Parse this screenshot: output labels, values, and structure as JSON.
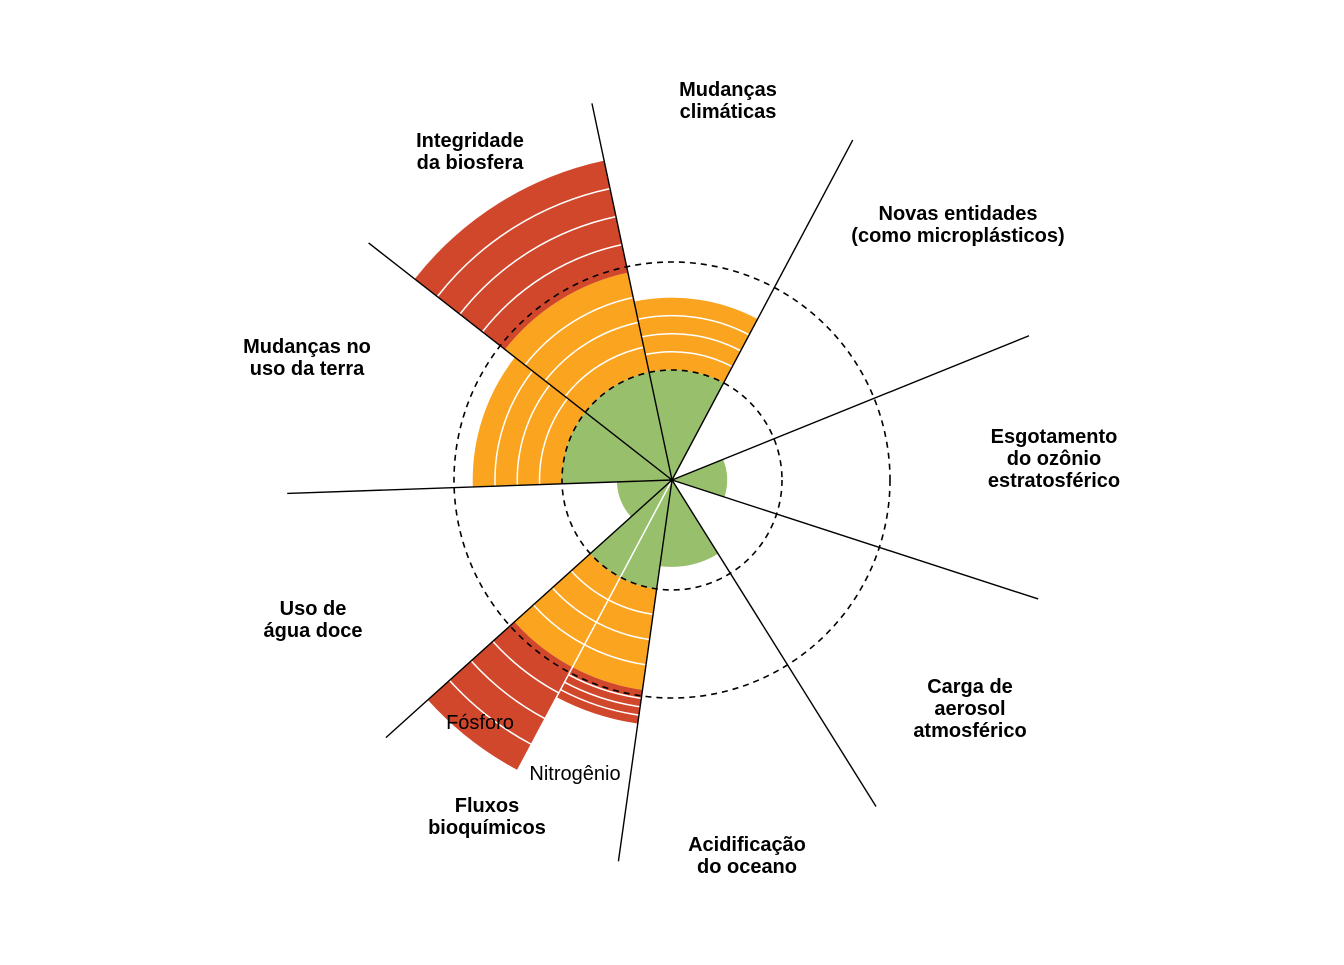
{
  "chart_data": {
    "type": "polar-bar",
    "title": "",
    "zones": {
      "safe": "#98BF6B",
      "increasing_risk": "#FBA41F",
      "high_risk": "#D0472C"
    },
    "boundary_rings": [
      "inner",
      "outer"
    ],
    "line_color": "#000000",
    "band_line_color": "#ffffff",
    "categories": [
      {
        "id": "climate",
        "label_lines": [
          "Mudanças",
          "climáticas"
        ],
        "segments": [
          {
            "zone": "safe",
            "value": 0.52
          },
          {
            "zone": "increasing_risk",
            "value": 0.34
          }
        ]
      },
      {
        "id": "novel",
        "label_lines": [
          "Novas entidades",
          "(como microplásticos)"
        ],
        "segments": []
      },
      {
        "id": "ozone",
        "label_lines": [
          "Esgotamento",
          "do ozônio",
          "estratosférico"
        ],
        "segments": [
          {
            "zone": "safe",
            "value": 0.26
          }
        ]
      },
      {
        "id": "aerosol",
        "label_lines": [
          "Carga de",
          "aerosol",
          "atmosférico"
        ],
        "segments": []
      },
      {
        "id": "ocean",
        "label_lines": [
          "Acidificação",
          "do oceano"
        ],
        "segments": [
          {
            "zone": "safe",
            "value": 0.41
          }
        ]
      },
      {
        "id": "biogeo",
        "label_lines": [
          "Fluxos",
          "bioquímicos"
        ],
        "subcategories": [
          {
            "name": "Fósforo",
            "segments": [
              {
                "zone": "safe",
                "value": 0.52
              },
              {
                "zone": "increasing_risk",
                "value": 0.48
              },
              {
                "zone": "high_risk",
                "value": 0.16
              }
            ]
          },
          {
            "name": "Nitrogênio",
            "segments": [
              {
                "zone": "safe",
                "value": 0.52
              },
              {
                "zone": "increasing_risk",
                "value": 0.48
              },
              {
                "zone": "high_risk",
                "value": 0.55
              }
            ]
          }
        ]
      },
      {
        "id": "water",
        "label_lines": [
          "Uso de",
          "água doce"
        ],
        "segments": [
          {
            "zone": "safe",
            "value": 0.26
          }
        ]
      },
      {
        "id": "land",
        "label_lines": [
          "Mudanças no",
          "uso da terra"
        ],
        "segments": [
          {
            "zone": "safe",
            "value": 0.52
          },
          {
            "zone": "increasing_risk",
            "value": 0.42
          }
        ]
      },
      {
        "id": "biosphere",
        "label_lines": [
          "Integridade",
          "da biosfera"
        ],
        "segments": [
          {
            "zone": "safe",
            "value": 0.52
          },
          {
            "zone": "increasing_risk",
            "value": 0.48
          },
          {
            "zone": "high_risk",
            "value": 0.54
          }
        ]
      }
    ]
  }
}
